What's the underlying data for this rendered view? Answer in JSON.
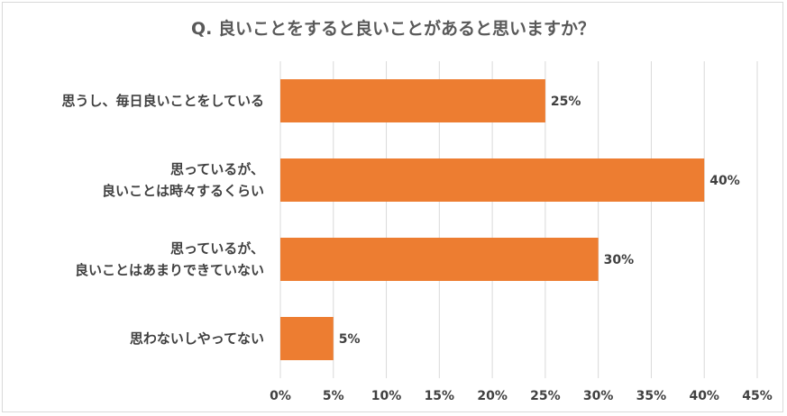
{
  "chart_data": {
    "type": "bar",
    "orientation": "horizontal",
    "title": "Q. 良いことをすると良いことがあると思いますか？",
    "categories": [
      [
        "思うし、毎日良いことをしている"
      ],
      [
        "思っているが、",
        "良いことは時々するくらい"
      ],
      [
        "思っているが、",
        "良いことはあまりできていない"
      ],
      [
        "思わないしやってない"
      ]
    ],
    "values": [
      25,
      40,
      30,
      5
    ],
    "data_labels": [
      "25%",
      "40%",
      "30%",
      "5%"
    ],
    "x_ticks": [
      "0%",
      "5%",
      "10%",
      "15%",
      "20%",
      "25%",
      "30%",
      "35%",
      "40%",
      "45%"
    ],
    "xlim": [
      0,
      45
    ],
    "bar_color": "#ED7D31",
    "grid": "vertical"
  }
}
